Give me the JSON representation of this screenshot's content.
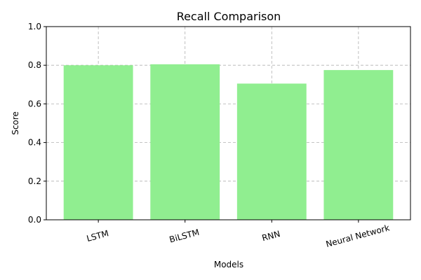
{
  "chart_data": {
    "type": "bar",
    "title": "Recall Comparison",
    "xlabel": "Models",
    "ylabel": "Score",
    "categories": [
      "LSTM",
      "BiLSTM",
      "RNN",
      "Neural Network"
    ],
    "values": [
      0.8,
      0.805,
      0.705,
      0.775
    ],
    "ylim": [
      0,
      1.0
    ],
    "yticks": [
      "0.0",
      "0.2",
      "0.4",
      "0.6",
      "0.8",
      "1.0"
    ],
    "grid": true,
    "bar_color": "#90ee90",
    "xtick_rotation_deg": -15
  }
}
